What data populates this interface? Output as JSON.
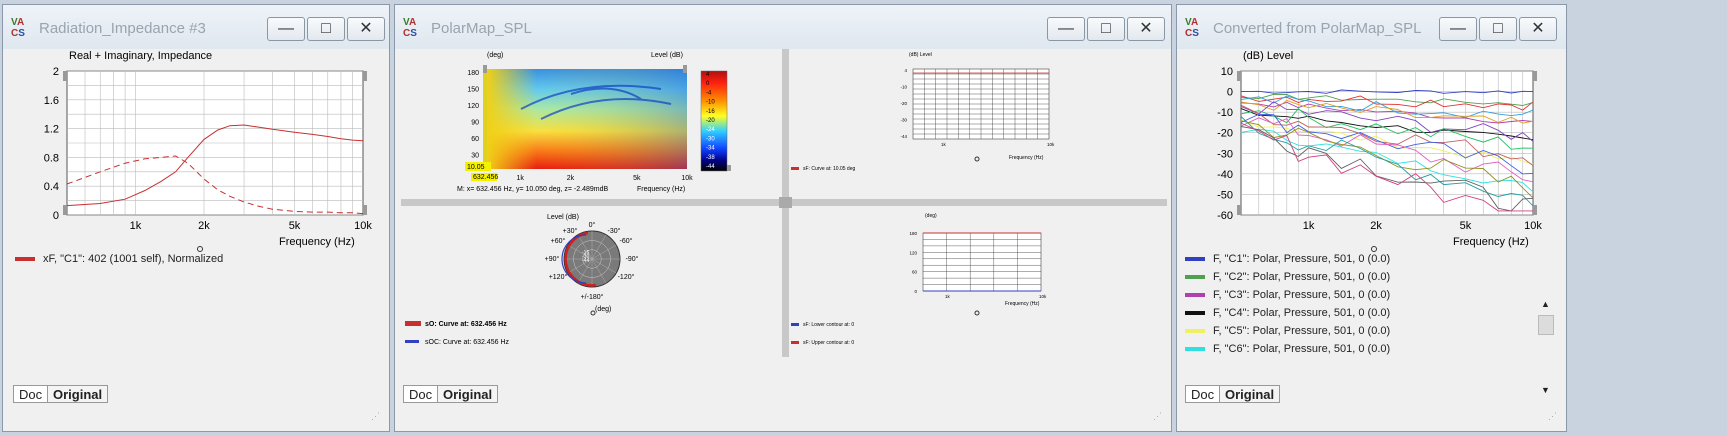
{
  "win1": {
    "title": "Radiation_Impedance #3",
    "chart_title": "Real + Imaginary, Impedance",
    "xlabel": "Frequency  (Hz)",
    "yticks": [
      "2",
      "1.6",
      "1.2",
      "0.8",
      "0.4",
      "0"
    ],
    "xticks": [
      "1k",
      "2k",
      "5k",
      "10k"
    ],
    "legend": "xF, \"C1\": 402 (1001 self), Normalized",
    "legend_color": "#c83030",
    "tab_doc": "Doc",
    "tab_original": "Original"
  },
  "win2": {
    "title": "PolarMap_SPL",
    "map": {
      "yaxis_unit": "(deg)",
      "level_label": "Level  (dB)",
      "yticks": [
        "180",
        "150",
        "120",
        "90",
        "60",
        "30"
      ],
      "y_low": "10.05",
      "x_low": "632.456",
      "xticks": [
        "1k",
        "2k",
        "5k",
        "10k"
      ],
      "colorbar": [
        "4",
        "0",
        "-4",
        "-10",
        "-16",
        "-20",
        "-24",
        "-30",
        "-34",
        "-38",
        "-44"
      ],
      "xlabel": "Frequency  (Hz)",
      "readout": "M:  x= 632.456 Hz,  y= 10.050 deg, z= -2.489mdB"
    },
    "plot_tr": {
      "ylabel": "(dB)  Level",
      "yticks": [
        "4",
        "-10",
        "-20",
        "-30",
        "-44"
      ],
      "xticks": [
        "1k",
        "10k"
      ],
      "xlabel": "Frequency  (Hz)",
      "legend": "sF: Curve at: 10.05 deg"
    },
    "polar": {
      "level_label": "Level  (dB)",
      "angles": [
        "0°",
        "-30°",
        "-60°",
        "-90°",
        "-120°",
        "+/-180°",
        "+120°",
        "+90°",
        "+60°",
        "+30°"
      ],
      "rings": [
        "-44",
        "-30",
        "-16"
      ],
      "unit": "(deg)",
      "legend1": "sO: Curve at: 632.456 Hz",
      "legend2": "sOC: Curve at: 632.456 Hz"
    },
    "plot_br": {
      "ylabel": "(deg)",
      "yticks": [
        "180",
        "120",
        "60",
        "0"
      ],
      "xticks": [
        "1k",
        "10k"
      ],
      "xlabel": "Frequency  (Hz)",
      "legend1": "sF: Lower contour at: 0",
      "legend2": "sF: Upper contour at: 0"
    },
    "tab_doc": "Doc",
    "tab_original": "Original"
  },
  "win3": {
    "title": "Converted from PolarMap_SPL",
    "ylabel": "(dB)  Level",
    "yticks": [
      "10",
      "0",
      "-10",
      "-20",
      "-30",
      "-40",
      "-50",
      "-60"
    ],
    "xticks": [
      "1k",
      "2k",
      "5k",
      "10k"
    ],
    "xlabel": "Frequency  (Hz)",
    "legend": [
      {
        "label": "F, \"C1\": Polar, Pressure, 501, 0 (0.0)",
        "color": "#3040c0"
      },
      {
        "label": "F, \"C2\": Polar, Pressure, 501, 0 (0.0)",
        "color": "#50a050"
      },
      {
        "label": "F, \"C3\": Polar, Pressure, 501, 0 (0.0)",
        "color": "#b040b0"
      },
      {
        "label": "F, \"C4\": Polar, Pressure, 501, 0 (0.0)",
        "color": "#111111"
      },
      {
        "label": "F, \"C5\": Polar, Pressure, 501, 0 (0.0)",
        "color": "#f0f060"
      },
      {
        "label": "F, \"C6\": Polar, Pressure, 501, 0 (0.0)",
        "color": "#30e0e0"
      }
    ],
    "tab_doc": "Doc",
    "tab_original": "Original"
  },
  "chart_data": [
    {
      "type": "line",
      "title": "Real + Imaginary, Impedance",
      "xlabel": "Frequency  (Hz)",
      "xscale": "log",
      "xlim": [
        500,
        10000
      ],
      "ylim": [
        0,
        2
      ],
      "grid": true,
      "series": [
        {
          "name": "xF, \"C1\": 402 (1001 self), Normalized",
          "x": [
            500,
            700,
            900,
            1100,
            1300,
            1500,
            1700,
            2000,
            2300,
            2600,
            3000,
            3500,
            4000,
            5000,
            6000,
            7000,
            8000,
            9000,
            10000
          ],
          "y": [
            0.13,
            0.16,
            0.22,
            0.34,
            0.47,
            0.6,
            0.8,
            1.05,
            1.18,
            1.24,
            1.25,
            1.22,
            1.19,
            1.15,
            1.12,
            1.09,
            1.06,
            1.04,
            1.03
          ]
        },
        {
          "x": [
            500,
            700,
            900,
            1100,
            1300,
            1500,
            1700,
            2000,
            2300,
            2600,
            3000,
            3500,
            4000,
            5000,
            6000,
            7000,
            8000,
            9000,
            10000
          ],
          "y": [
            0.43,
            0.6,
            0.72,
            0.78,
            0.8,
            0.82,
            0.72,
            0.5,
            0.35,
            0.26,
            0.18,
            0.12,
            0.08,
            0.05,
            0.04,
            0.04,
            0.03,
            0.03,
            0.02
          ]
        }
      ]
    },
    {
      "type": "line",
      "title": "",
      "ylabel": "(dB)  Level",
      "xlabel": "Frequency  (Hz)",
      "xscale": "log",
      "xlim": [
        500,
        10000
      ],
      "ylim": [
        -60,
        10
      ],
      "grid": true,
      "series": [
        {
          "name": "F, \"C1\": Polar, Pressure, 501, 0 (0.0)",
          "x": [
            500,
            1000,
            2000,
            5000,
            10000
          ],
          "y": [
            0,
            0,
            0,
            0,
            0
          ]
        },
        {
          "name": "F, \"C2\": Polar, Pressure, 501, 0 (0.0)",
          "x": [
            500,
            1000,
            2000,
            5000,
            10000
          ],
          "y": [
            -2,
            -3,
            -4,
            -5,
            -6
          ]
        },
        {
          "name": "F, \"C3\": Polar, Pressure, 501, 0 (0.0)",
          "x": [
            500,
            1000,
            2000,
            5000,
            10000
          ],
          "y": [
            -5,
            -7,
            -9,
            -12,
            -15
          ]
        },
        {
          "name": "F, \"C4\": Polar, Pressure, 501, 0 (0.0)",
          "x": [
            500,
            1000,
            2000,
            5000,
            10000
          ],
          "y": [
            -10,
            -14,
            -17,
            -20,
            -24
          ]
        },
        {
          "name": "F, \"C5\": Polar, Pressure, 501, 0 (0.0)",
          "x": [
            500,
            1000,
            2000,
            5000,
            10000
          ],
          "y": [
            -14,
            -20,
            -25,
            -30,
            -35
          ]
        },
        {
          "name": "F, \"C6\": Polar, Pressure, 501, 0 (0.0)",
          "x": [
            500,
            1000,
            2000,
            5000,
            10000
          ],
          "y": [
            -18,
            -26,
            -33,
            -40,
            -47
          ]
        }
      ]
    }
  ]
}
